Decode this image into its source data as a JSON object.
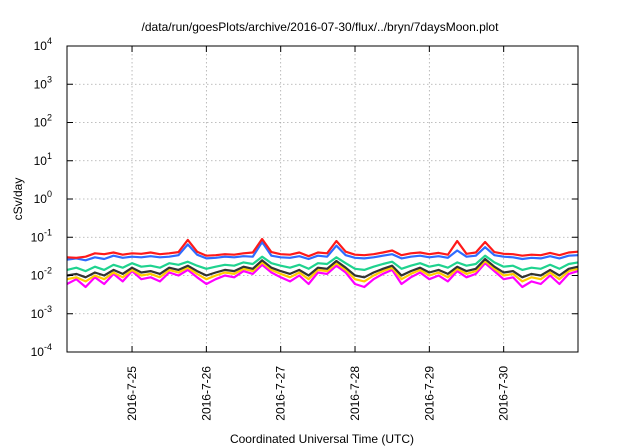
{
  "chart_data": {
    "type": "line",
    "title": "/data/run/goesPlots/archive/2016-07-30/flux/../bryn/7daysMoon.plot",
    "xlabel": "Coordinated Universal Time (UTC)",
    "ylabel": "cSv/day",
    "yscale": "log",
    "ylim": [
      0.0001,
      10000
    ],
    "y_ticks": [
      {
        "base": "10",
        "exp": "-4",
        "value": 0.0001
      },
      {
        "base": "10",
        "exp": "-3",
        "value": 0.001
      },
      {
        "base": "10",
        "exp": "-2",
        "value": 0.01
      },
      {
        "base": "10",
        "exp": "-1",
        "value": 0.1
      },
      {
        "base": "10",
        "exp": "0",
        "value": 1
      },
      {
        "base": "10",
        "exp": "1",
        "value": 10
      },
      {
        "base": "10",
        "exp": "2",
        "value": 100
      },
      {
        "base": "10",
        "exp": "3",
        "value": 1000
      },
      {
        "base": "10",
        "exp": "4",
        "value": 10000
      }
    ],
    "xlim": [
      "2016-07-24T03:00",
      "2016-07-31T00:00"
    ],
    "x_ticks": [
      {
        "label": "2016-7-25",
        "value": "2016-07-25T00:00"
      },
      {
        "label": "2016-7-26",
        "value": "2016-07-26T00:00"
      },
      {
        "label": "2016-7-27",
        "value": "2016-07-27T00:00"
      },
      {
        "label": "2016-7-28",
        "value": "2016-07-28T00:00"
      },
      {
        "label": "2016-7-29",
        "value": "2016-07-29T00:00"
      },
      {
        "label": "2016-7-30",
        "value": "2016-07-30T00:00"
      }
    ],
    "grid": true,
    "x": [
      "2016-07-24T03:00",
      "2016-07-24T06:00",
      "2016-07-24T09:00",
      "2016-07-24T12:00",
      "2016-07-24T15:00",
      "2016-07-24T18:00",
      "2016-07-24T21:00",
      "2016-07-25T00:00",
      "2016-07-25T03:00",
      "2016-07-25T06:00",
      "2016-07-25T09:00",
      "2016-07-25T12:00",
      "2016-07-25T15:00",
      "2016-07-25T18:00",
      "2016-07-25T21:00",
      "2016-07-26T00:00",
      "2016-07-26T03:00",
      "2016-07-26T06:00",
      "2016-07-26T09:00",
      "2016-07-26T12:00",
      "2016-07-26T15:00",
      "2016-07-26T18:00",
      "2016-07-26T21:00",
      "2016-07-27T00:00",
      "2016-07-27T03:00",
      "2016-07-27T06:00",
      "2016-07-27T09:00",
      "2016-07-27T12:00",
      "2016-07-27T15:00",
      "2016-07-27T18:00",
      "2016-07-27T21:00",
      "2016-07-28T00:00",
      "2016-07-28T03:00",
      "2016-07-28T06:00",
      "2016-07-28T09:00",
      "2016-07-28T12:00",
      "2016-07-28T15:00",
      "2016-07-28T18:00",
      "2016-07-28T21:00",
      "2016-07-29T00:00",
      "2016-07-29T03:00",
      "2016-07-29T06:00",
      "2016-07-29T09:00",
      "2016-07-29T12:00",
      "2016-07-29T15:00",
      "2016-07-29T18:00",
      "2016-07-29T21:00",
      "2016-07-30T00:00",
      "2016-07-30T03:00",
      "2016-07-30T06:00",
      "2016-07-30T09:00",
      "2016-07-30T12:00",
      "2016-07-30T15:00",
      "2016-07-30T18:00",
      "2016-07-30T21:00",
      "2016-07-31T00:00"
    ],
    "series": [
      {
        "color": "#ff00ff",
        "values": [
          0.006,
          0.008,
          0.005,
          0.009,
          0.006,
          0.011,
          0.007,
          0.013,
          0.008,
          0.009,
          0.007,
          0.012,
          0.01,
          0.014,
          0.009,
          0.006,
          0.008,
          0.01,
          0.009,
          0.013,
          0.011,
          0.019,
          0.012,
          0.009,
          0.007,
          0.01,
          0.006,
          0.012,
          0.011,
          0.018,
          0.012,
          0.006,
          0.005,
          0.008,
          0.011,
          0.014,
          0.006,
          0.009,
          0.012,
          0.008,
          0.01,
          0.007,
          0.013,
          0.009,
          0.011,
          0.021,
          0.013,
          0.008,
          0.009,
          0.005,
          0.007,
          0.006,
          0.01,
          0.006,
          0.011,
          0.013
        ]
      },
      {
        "color": "#ffcc00",
        "values": [
          0.008,
          0.009,
          0.007,
          0.01,
          0.008,
          0.012,
          0.009,
          0.014,
          0.01,
          0.011,
          0.009,
          0.014,
          0.012,
          0.016,
          0.011,
          0.008,
          0.01,
          0.012,
          0.011,
          0.015,
          0.013,
          0.022,
          0.014,
          0.011,
          0.009,
          0.012,
          0.008,
          0.014,
          0.013,
          0.021,
          0.014,
          0.008,
          0.007,
          0.01,
          0.013,
          0.016,
          0.008,
          0.011,
          0.014,
          0.01,
          0.012,
          0.009,
          0.015,
          0.011,
          0.013,
          0.024,
          0.015,
          0.01,
          0.011,
          0.007,
          0.009,
          0.008,
          0.012,
          0.008,
          0.013,
          0.015
        ]
      },
      {
        "color": "#333333",
        "values": [
          0.01,
          0.011,
          0.009,
          0.012,
          0.01,
          0.014,
          0.011,
          0.016,
          0.012,
          0.013,
          0.011,
          0.016,
          0.014,
          0.018,
          0.013,
          0.01,
          0.012,
          0.014,
          0.013,
          0.017,
          0.015,
          0.025,
          0.016,
          0.013,
          0.011,
          0.014,
          0.01,
          0.016,
          0.015,
          0.024,
          0.016,
          0.01,
          0.009,
          0.012,
          0.015,
          0.018,
          0.01,
          0.013,
          0.016,
          0.012,
          0.014,
          0.011,
          0.017,
          0.013,
          0.015,
          0.027,
          0.017,
          0.012,
          0.013,
          0.009,
          0.011,
          0.01,
          0.014,
          0.01,
          0.015,
          0.017
        ]
      },
      {
        "color": "#1fd38f",
        "values": [
          0.014,
          0.016,
          0.013,
          0.017,
          0.014,
          0.019,
          0.016,
          0.021,
          0.017,
          0.018,
          0.016,
          0.021,
          0.019,
          0.023,
          0.018,
          0.015,
          0.017,
          0.019,
          0.018,
          0.022,
          0.02,
          0.031,
          0.021,
          0.018,
          0.016,
          0.019,
          0.015,
          0.021,
          0.02,
          0.03,
          0.021,
          0.015,
          0.014,
          0.017,
          0.02,
          0.023,
          0.015,
          0.018,
          0.021,
          0.017,
          0.019,
          0.016,
          0.022,
          0.018,
          0.02,
          0.033,
          0.022,
          0.017,
          0.018,
          0.014,
          0.016,
          0.015,
          0.019,
          0.015,
          0.02,
          0.022
        ]
      },
      {
        "color": "#2f6bff",
        "values": [
          0.026,
          0.028,
          0.025,
          0.03,
          0.027,
          0.033,
          0.029,
          0.031,
          0.03,
          0.032,
          0.03,
          0.031,
          0.034,
          0.065,
          0.035,
          0.028,
          0.029,
          0.031,
          0.03,
          0.032,
          0.031,
          0.075,
          0.033,
          0.03,
          0.029,
          0.032,
          0.027,
          0.033,
          0.031,
          0.06,
          0.034,
          0.029,
          0.028,
          0.03,
          0.033,
          0.036,
          0.028,
          0.031,
          0.033,
          0.03,
          0.032,
          0.029,
          0.045,
          0.031,
          0.033,
          0.055,
          0.034,
          0.031,
          0.03,
          0.027,
          0.029,
          0.028,
          0.032,
          0.028,
          0.033,
          0.034
        ]
      },
      {
        "color": "#ff1a1a",
        "values": [
          0.03,
          0.029,
          0.031,
          0.038,
          0.036,
          0.04,
          0.035,
          0.038,
          0.037,
          0.04,
          0.036,
          0.038,
          0.041,
          0.085,
          0.042,
          0.033,
          0.034,
          0.036,
          0.035,
          0.038,
          0.04,
          0.09,
          0.041,
          0.036,
          0.035,
          0.04,
          0.032,
          0.04,
          0.038,
          0.08,
          0.042,
          0.035,
          0.034,
          0.036,
          0.04,
          0.045,
          0.034,
          0.038,
          0.04,
          0.036,
          0.039,
          0.035,
          0.08,
          0.037,
          0.04,
          0.075,
          0.041,
          0.037,
          0.036,
          0.033,
          0.035,
          0.034,
          0.039,
          0.034,
          0.04,
          0.042
        ]
      }
    ]
  }
}
